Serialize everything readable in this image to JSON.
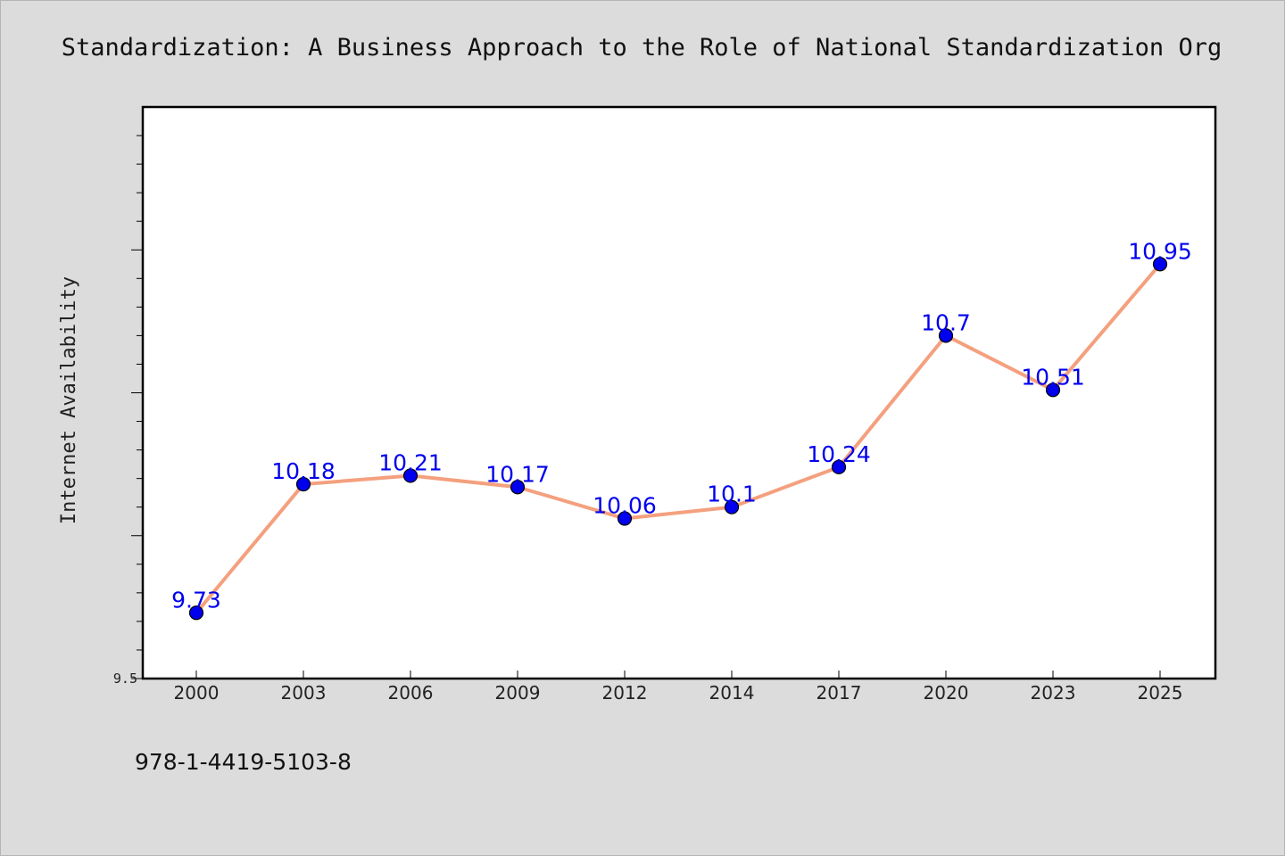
{
  "chart_data": {
    "type": "line",
    "title": "Standardization: A Business Approach to the Role of National Standardization Org",
    "xlabel": "",
    "ylabel": "Internet Availability",
    "categories": [
      "2000",
      "2003",
      "2006",
      "2009",
      "2012",
      "2014",
      "2017",
      "2020",
      "2023",
      "2025"
    ],
    "series": [
      {
        "values": [
          9.73,
          10.18,
          10.21,
          10.17,
          10.06,
          10.1,
          10.24,
          10.7,
          10.51,
          10.95
        ],
        "labels": [
          "9.73",
          "10.18",
          "10.21",
          "10.17",
          "10.06",
          "10.1",
          "10.24",
          "10.7",
          "10.51",
          "10.95"
        ],
        "line_color": "#f4a07e",
        "marker_color": "#0000ee",
        "label_color": "#0000ee"
      }
    ],
    "ylim": [
      9.5,
      11.5
    ],
    "ytick_labels": [
      "9.5"
    ],
    "grid": false,
    "legend": "none"
  },
  "footer": {
    "isbn": "978-1-4419-5103-8"
  },
  "colors": {
    "background": "#dcdcdc",
    "plot_background": "#ffffff",
    "axis": "#000000"
  }
}
